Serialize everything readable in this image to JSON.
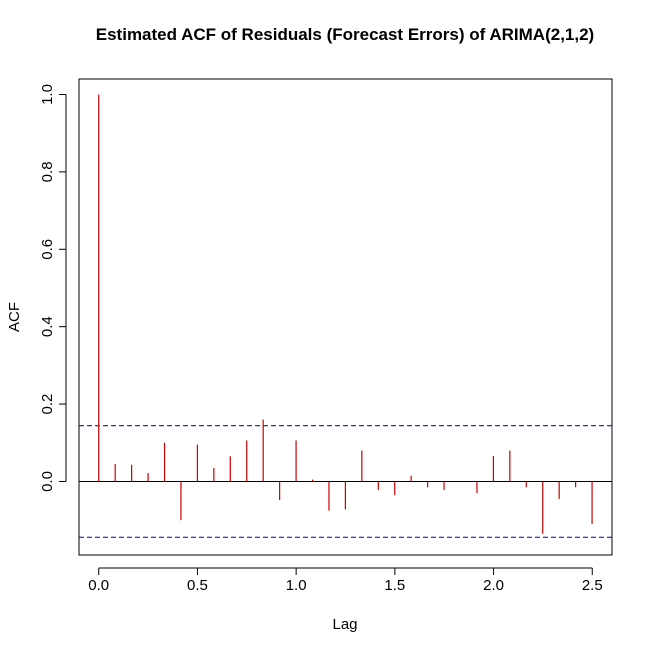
{
  "chart_data": {
    "type": "acf",
    "title": "Estimated ACF of Residuals (Forecast Errors) of ARIMA(2,1,2)",
    "xlabel": "Lag",
    "ylabel": "ACF",
    "xlim": [
      -0.1,
      2.6
    ],
    "ylim": [
      -0.19,
      1.04
    ],
    "x_ticks": [
      {
        "value": 0.0,
        "label": "0.0"
      },
      {
        "value": 0.5,
        "label": "0.5"
      },
      {
        "value": 1.0,
        "label": "1.0"
      },
      {
        "value": 1.5,
        "label": "1.5"
      },
      {
        "value": 2.0,
        "label": "2.0"
      },
      {
        "value": 2.5,
        "label": "2.5"
      }
    ],
    "y_ticks": [
      {
        "value": 0.0,
        "label": "0.0"
      },
      {
        "value": 0.2,
        "label": "0.2"
      },
      {
        "value": 0.4,
        "label": "0.4"
      },
      {
        "value": 0.6,
        "label": "0.6"
      },
      {
        "value": 0.8,
        "label": "0.8"
      },
      {
        "value": 1.0,
        "label": "1.0"
      }
    ],
    "confidence_bounds": [
      0.144,
      -0.144
    ],
    "lag_step": 0.0833,
    "values": [
      1.0,
      0.045,
      0.043,
      0.022,
      0.1,
      -0.1,
      0.095,
      0.035,
      0.065,
      0.106,
      0.16,
      -0.048,
      0.106,
      0.005,
      -0.075,
      -0.072,
      0.08,
      -0.022,
      -0.035,
      0.015,
      -0.015,
      -0.022,
      0.0,
      -0.03,
      0.066,
      0.08,
      -0.015,
      -0.135,
      -0.045,
      -0.015,
      -0.11
    ],
    "spike_color": "#cc0000",
    "bound_color": "#00008b",
    "zero_line_color": "#000000"
  }
}
